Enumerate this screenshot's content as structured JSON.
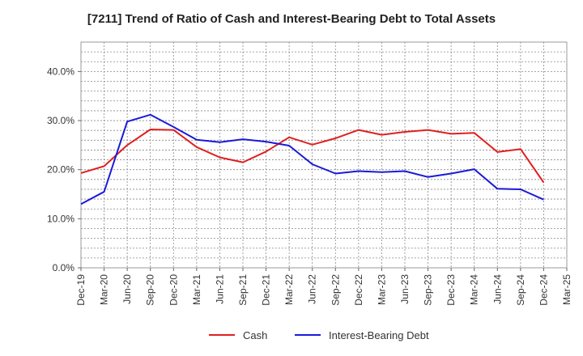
{
  "chart_data": {
    "type": "line",
    "title": "[7211]  Trend of Ratio of Cash and Interest-Bearing Debt to Total Assets",
    "xlabel": "",
    "ylabel": "",
    "categories": [
      "Dec-19",
      "Mar-20",
      "Jun-20",
      "Sep-20",
      "Dec-20",
      "Mar-21",
      "Jun-21",
      "Sep-21",
      "Dec-21",
      "Mar-22",
      "Jun-22",
      "Sep-22",
      "Dec-22",
      "Mar-23",
      "Jun-23",
      "Sep-23",
      "Dec-23",
      "Mar-24",
      "Jun-24",
      "Sep-24",
      "Dec-24",
      "Mar-25"
    ],
    "ylim": [
      0,
      46
    ],
    "yticks": [
      0,
      10,
      20,
      30,
      40
    ],
    "ytick_labels": [
      "0.0%",
      "10.0%",
      "20.0%",
      "30.0%",
      "40.0%"
    ],
    "grid": true,
    "legend_position": "bottom",
    "series": [
      {
        "name": "Cash",
        "color": "#e02020",
        "values": [
          19.3,
          20.7,
          25.0,
          28.2,
          28.1,
          24.6,
          22.5,
          21.5,
          23.7,
          26.6,
          25.1,
          26.4,
          28.1,
          27.1,
          27.7,
          28.1,
          27.3,
          27.5,
          23.6,
          24.2,
          17.4,
          null
        ]
      },
      {
        "name": "Interest-Bearing Debt",
        "color": "#1a1ad8",
        "values": [
          13.0,
          15.5,
          29.8,
          31.2,
          28.7,
          26.1,
          25.6,
          26.2,
          25.7,
          24.9,
          21.1,
          19.2,
          19.7,
          19.5,
          19.7,
          18.5,
          19.2,
          20.1,
          16.1,
          16.0,
          13.9,
          null
        ]
      }
    ]
  }
}
